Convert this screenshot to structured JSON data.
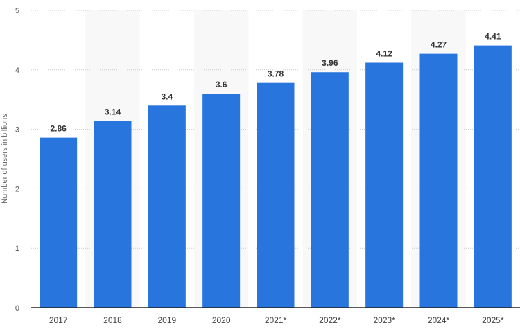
{
  "chart_data": {
    "type": "bar",
    "categories": [
      "2017",
      "2018",
      "2019",
      "2020",
      "2021*",
      "2022*",
      "2023*",
      "2024*",
      "2025*"
    ],
    "values": [
      2.86,
      3.14,
      3.4,
      3.6,
      3.78,
      3.96,
      4.12,
      4.27,
      4.41
    ],
    "data_labels": [
      "2.86",
      "3.14",
      "3.4",
      "3.6",
      "3.78",
      "3.96",
      "4.12",
      "4.27",
      "4.41"
    ],
    "title": "",
    "xlabel": "",
    "ylabel": "Number of users in billions",
    "ylim": [
      0,
      5
    ],
    "yticks": [
      "0",
      "1",
      "2",
      "3",
      "4",
      "5"
    ],
    "grid": true,
    "bar_color": "#2876dd",
    "band_color": "#f8f8f8"
  }
}
